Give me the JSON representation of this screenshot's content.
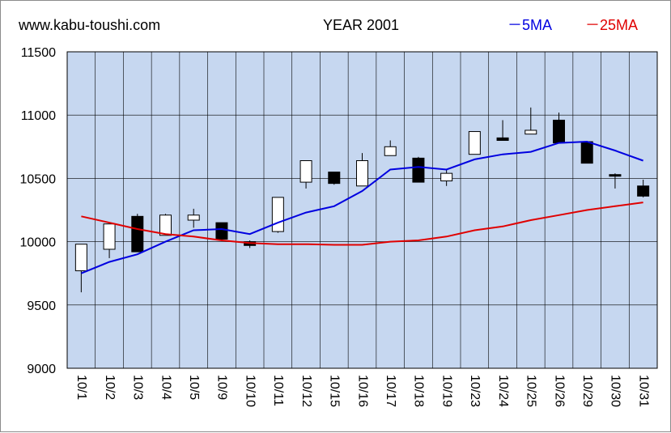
{
  "header": {
    "site": "www.kabu-toushi.com",
    "year_label": "YEAR 2001"
  },
  "chart_data": {
    "type": "candlestick",
    "title": "YEAR 2001",
    "categories": [
      "10/1",
      "10/2",
      "10/3",
      "10/4",
      "10/5",
      "10/9",
      "10/10",
      "10/11",
      "10/12",
      "10/15",
      "10/16",
      "10/17",
      "10/18",
      "10/19",
      "10/23",
      "10/24",
      "10/25",
      "10/26",
      "10/29",
      "10/30",
      "10/31"
    ],
    "candles": [
      {
        "open": 9770,
        "close": 9980,
        "high": 9980,
        "low": 9600
      },
      {
        "open": 9940,
        "close": 10140,
        "high": 10140,
        "low": 9870
      },
      {
        "open": 10200,
        "close": 9920,
        "high": 10220,
        "low": 9920
      },
      {
        "open": 10050,
        "close": 10210,
        "high": 10220,
        "low": 10050
      },
      {
        "open": 10170,
        "close": 10210,
        "high": 10260,
        "low": 10110
      },
      {
        "open": 10150,
        "close": 10020,
        "high": 10150,
        "low": 10010
      },
      {
        "open": 10000,
        "close": 9970,
        "high": 10010,
        "low": 9950
      },
      {
        "open": 10080,
        "close": 10350,
        "high": 10350,
        "low": 10070
      },
      {
        "open": 10470,
        "close": 10640,
        "high": 10640,
        "low": 10420
      },
      {
        "open": 10550,
        "close": 10460,
        "high": 10550,
        "low": 10450
      },
      {
        "open": 10440,
        "close": 10640,
        "high": 10700,
        "low": 10440
      },
      {
        "open": 10680,
        "close": 10750,
        "high": 10800,
        "low": 10680
      },
      {
        "open": 10660,
        "close": 10470,
        "high": 10670,
        "low": 10470
      },
      {
        "open": 10480,
        "close": 10540,
        "high": 10570,
        "low": 10440
      },
      {
        "open": 10690,
        "close": 10870,
        "high": 10870,
        "low": 10690
      },
      {
        "open": 10820,
        "close": 10800,
        "high": 10960,
        "low": 10800
      },
      {
        "open": 10850,
        "close": 10880,
        "high": 11060,
        "low": 10850
      },
      {
        "open": 10960,
        "close": 10780,
        "high": 11020,
        "low": 10780
      },
      {
        "open": 10790,
        "close": 10620,
        "high": 10790,
        "low": 10620
      },
      {
        "open": 10530,
        "close": 10520,
        "high": 10540,
        "low": 10420
      },
      {
        "open": 10440,
        "close": 10360,
        "high": 10490,
        "low": 10350
      }
    ],
    "series": [
      {
        "name": "5MA",
        "color": "#0000e0",
        "values": [
          9750,
          9840,
          9900,
          10000,
          10090,
          10100,
          10060,
          10150,
          10230,
          10280,
          10400,
          10570,
          10590,
          10570,
          10650,
          10690,
          10710,
          10780,
          10790,
          10720,
          10640
        ]
      },
      {
        "name": "25MA",
        "color": "#e00000",
        "values": [
          10200,
          10150,
          10100,
          10060,
          10040,
          10010,
          9990,
          9980,
          9980,
          9975,
          9975,
          10000,
          10010,
          10040,
          10090,
          10120,
          10170,
          10210,
          10250,
          10280,
          10310
        ]
      }
    ],
    "legend_labels": [
      "－5MA",
      "－25MA"
    ],
    "yticks": [
      9000,
      9500,
      10000,
      10500,
      11000,
      11500
    ],
    "ylim": [
      9000,
      11500
    ],
    "grid": true,
    "legend_position": "top-right",
    "colors": {
      "plot_bg": "#c6d7f0",
      "up": "#ffffff",
      "down": "#000000"
    }
  }
}
